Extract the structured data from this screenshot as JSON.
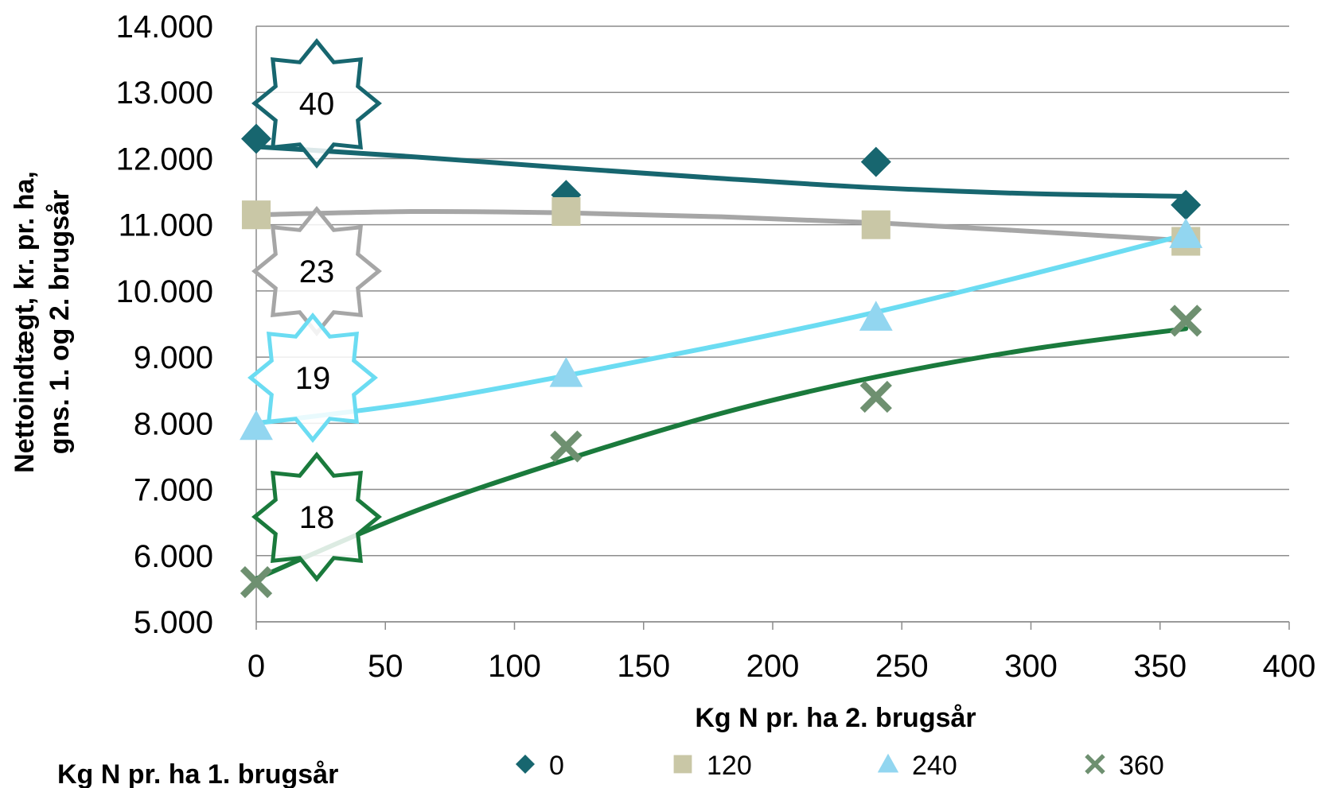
{
  "chart_data": {
    "type": "scatter",
    "xlabel": "Kg N pr. ha 2. brugsår",
    "ylabel_line1": "Nettoindtægt, kr. pr. ha,",
    "ylabel_line2": "gns. 1. og 2. brugsår",
    "xlim": [
      0,
      400
    ],
    "ylim": [
      5000,
      14000
    ],
    "x_ticks": [
      0,
      50,
      100,
      150,
      200,
      250,
      300,
      350,
      400
    ],
    "x_tick_labels": [
      "0",
      "50",
      "100",
      "150",
      "200",
      "250",
      "300",
      "350",
      "400"
    ],
    "y_ticks": [
      5000,
      6000,
      7000,
      8000,
      9000,
      10000,
      11000,
      12000,
      13000,
      14000
    ],
    "y_tick_labels": [
      "5.000",
      "6.000",
      "7.000",
      "8.000",
      "9.000",
      "10.000",
      "11.000",
      "12.000",
      "13.000",
      "14.000"
    ],
    "grid": true,
    "legend_title": "Kg N pr. ha 1. brugsår",
    "legend_position": "bottom",
    "series": [
      {
        "name": "0",
        "marker": "diamond",
        "marker_color": "#17666f",
        "line_color": "#17666f",
        "x": [
          0,
          120,
          240,
          360
        ],
        "y": [
          12300,
          11450,
          11950,
          11300
        ],
        "trend": [
          [
            0,
            12180
          ],
          [
            60,
            12030
          ],
          [
            120,
            11860
          ],
          [
            180,
            11700
          ],
          [
            240,
            11560
          ],
          [
            300,
            11470
          ],
          [
            360,
            11430
          ]
        ],
        "badge": "40"
      },
      {
        "name": "120",
        "marker": "square",
        "marker_color": "#c9c7a6",
        "line_color": "#a6a6a6",
        "x": [
          0,
          120,
          240,
          360
        ],
        "y": [
          11150,
          11200,
          11000,
          10750
        ],
        "trend": [
          [
            0,
            11150
          ],
          [
            60,
            11200
          ],
          [
            120,
            11180
          ],
          [
            180,
            11120
          ],
          [
            240,
            11030
          ],
          [
            300,
            10900
          ],
          [
            360,
            10760
          ]
        ],
        "badge": "23"
      },
      {
        "name": "240",
        "marker": "triangle",
        "marker_color": "#92d6f0",
        "line_color": "#6bdcf2",
        "x": [
          0,
          120,
          240,
          360
        ],
        "y": [
          7950,
          8750,
          9600,
          10850
        ],
        "trend": [
          [
            0,
            8000
          ],
          [
            60,
            8300
          ],
          [
            120,
            8720
          ],
          [
            180,
            9180
          ],
          [
            240,
            9680
          ],
          [
            300,
            10250
          ],
          [
            360,
            10850
          ]
        ],
        "badge": "19"
      },
      {
        "name": "360",
        "marker": "x",
        "marker_color": "#6e9070",
        "line_color": "#1a7a3c",
        "x": [
          0,
          120,
          240,
          360
        ],
        "y": [
          5600,
          7650,
          8400,
          9550
        ],
        "trend": [
          [
            0,
            5650
          ],
          [
            60,
            6650
          ],
          [
            120,
            7450
          ],
          [
            180,
            8150
          ],
          [
            240,
            8700
          ],
          [
            300,
            9120
          ],
          [
            360,
            9430
          ]
        ],
        "badge": "18"
      }
    ]
  }
}
